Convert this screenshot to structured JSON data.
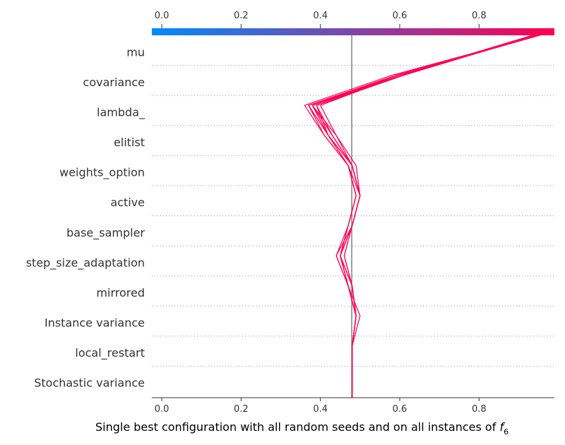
{
  "chart_data": {
    "type": "line",
    "plot_kind": "decision-plot",
    "x_ticks": [
      0.0,
      0.2,
      0.4,
      0.6,
      0.8
    ],
    "x_tick_labels": [
      "0.0",
      "0.2",
      "0.4",
      "0.6",
      "0.8"
    ],
    "xlim": [
      -0.025,
      0.99
    ],
    "base_value": 0.479,
    "xlabel_main": "Single best configuration with all random seeds and on all instances of ",
    "xlabel_var": "f",
    "xlabel_sub": "6",
    "features": [
      "mu",
      "covariance",
      "lambda_",
      "elitist",
      "weights_option",
      "active",
      "base_sampler",
      "step_size_adaptation",
      "mirrored",
      "Instance variance",
      "local_restart",
      "Stochastic variance"
    ],
    "line_color": "#ff0052",
    "colorbar": {
      "stops": [
        "#008bfb",
        "#ff0052"
      ],
      "start_color": "#008bfb",
      "end_color": "#ff0052"
    },
    "grid": "dotted-horizontal",
    "series_note": "boundary values top (mu) to bottom (start)",
    "series": [
      {
        "values": [
          0.99,
          0.58,
          0.36,
          0.41,
          0.47,
          0.5,
          0.48,
          0.44,
          0.47,
          0.49,
          0.48,
          0.48,
          0.48
        ]
      },
      {
        "values": [
          0.99,
          0.59,
          0.37,
          0.42,
          0.48,
          0.5,
          0.48,
          0.45,
          0.47,
          0.49,
          0.48,
          0.48,
          0.48
        ]
      },
      {
        "values": [
          0.99,
          0.6,
          0.37,
          0.41,
          0.47,
          0.49,
          0.47,
          0.44,
          0.47,
          0.5,
          0.48,
          0.48,
          0.48
        ]
      },
      {
        "values": [
          0.98,
          0.6,
          0.38,
          0.43,
          0.48,
          0.5,
          0.48,
          0.45,
          0.48,
          0.49,
          0.48,
          0.48,
          0.48
        ]
      },
      {
        "values": [
          0.98,
          0.61,
          0.38,
          0.42,
          0.47,
          0.49,
          0.47,
          0.45,
          0.48,
          0.49,
          0.48,
          0.48,
          0.48
        ]
      },
      {
        "values": [
          0.98,
          0.6,
          0.39,
          0.43,
          0.48,
          0.5,
          0.48,
          0.45,
          0.47,
          0.49,
          0.48,
          0.48,
          0.48
        ]
      },
      {
        "values": [
          0.97,
          0.61,
          0.39,
          0.43,
          0.48,
          0.5,
          0.48,
          0.46,
          0.48,
          0.49,
          0.48,
          0.48,
          0.48
        ]
      },
      {
        "values": [
          0.97,
          0.6,
          0.38,
          0.42,
          0.47,
          0.49,
          0.47,
          0.45,
          0.47,
          0.49,
          0.48,
          0.48,
          0.48
        ]
      },
      {
        "values": [
          0.99,
          0.59,
          0.38,
          0.44,
          0.49,
          0.5,
          0.48,
          0.46,
          0.48,
          0.49,
          0.48,
          0.48,
          0.48
        ]
      },
      {
        "values": [
          0.98,
          0.6,
          0.4,
          0.44,
          0.48,
          0.5,
          0.48,
          0.45,
          0.48,
          0.49,
          0.48,
          0.48,
          0.48
        ]
      },
      {
        "values": [
          0.97,
          0.61,
          0.39,
          0.42,
          0.47,
          0.49,
          0.47,
          0.45,
          0.47,
          0.49,
          0.48,
          0.48,
          0.48
        ]
      },
      {
        "values": [
          0.98,
          0.6,
          0.37,
          0.42,
          0.48,
          0.5,
          0.48,
          0.45,
          0.48,
          0.49,
          0.48,
          0.48,
          0.48
        ]
      }
    ]
  }
}
